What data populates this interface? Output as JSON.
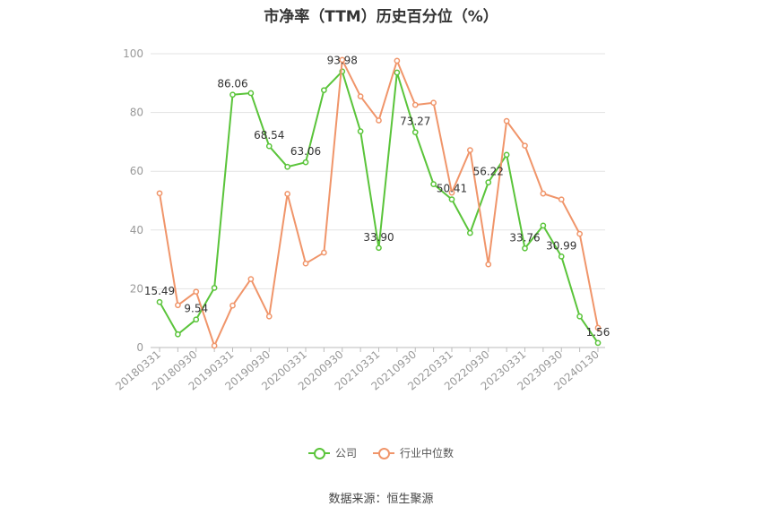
{
  "chart_data": {
    "type": "line",
    "title": "市净率（TTM）历史百分位（%）",
    "ylim": [
      0,
      100
    ],
    "yticks": [
      0,
      20,
      40,
      60,
      80,
      100
    ],
    "grid": true,
    "legend_position": "bottom",
    "x": [
      "20180331",
      "20180630",
      "20180930",
      "20181231",
      "20190331",
      "20190630",
      "20190930",
      "20191231",
      "20200331",
      "20200630",
      "20200930",
      "20201231",
      "20210331",
      "20210630",
      "20210930",
      "20211231",
      "20220331",
      "20220630",
      "20220930",
      "20221231",
      "20230331",
      "20230630",
      "20230930",
      "20231231",
      "20240130"
    ],
    "xtick_labels": [
      "20180331",
      "20180930",
      "20190331",
      "20190930",
      "20200331",
      "20200930",
      "20210331",
      "20210930",
      "20220331",
      "20220930",
      "20230331",
      "20230930",
      "20240130"
    ],
    "series": [
      {
        "name": "公司",
        "color": "#5ac43a",
        "values": [
          15.49,
          4.5,
          9.54,
          20.3,
          86.06,
          86.6,
          68.54,
          61.5,
          63.06,
          87.6,
          93.98,
          73.6,
          33.9,
          93.6,
          73.27,
          55.6,
          50.41,
          39.0,
          56.22,
          65.6,
          33.76,
          41.5,
          30.99,
          10.6,
          1.56
        ]
      },
      {
        "name": "行业中位数",
        "color": "#f0956a",
        "values": [
          52.5,
          14.4,
          19.0,
          0.6,
          14.3,
          23.3,
          10.6,
          52.3,
          28.6,
          32.3,
          97.9,
          85.5,
          77.3,
          97.6,
          82.6,
          83.3,
          52.7,
          67.2,
          28.3,
          77.1,
          68.7,
          52.4,
          50.4,
          38.7,
          6.7
        ]
      }
    ],
    "data_labels": [
      {
        "series": 0,
        "index": 0,
        "text": "15.49"
      },
      {
        "series": 0,
        "index": 2,
        "text": "9.54"
      },
      {
        "series": 0,
        "index": 4,
        "text": "86.06"
      },
      {
        "series": 0,
        "index": 6,
        "text": "68.54"
      },
      {
        "series": 0,
        "index": 8,
        "text": "63.06"
      },
      {
        "series": 0,
        "index": 10,
        "text": "93.98"
      },
      {
        "series": 0,
        "index": 12,
        "text": "33.90"
      },
      {
        "series": 0,
        "index": 14,
        "text": "73.27"
      },
      {
        "series": 0,
        "index": 16,
        "text": "50.41"
      },
      {
        "series": 0,
        "index": 18,
        "text": "56.22"
      },
      {
        "series": 0,
        "index": 20,
        "text": "33.76"
      },
      {
        "series": 0,
        "index": 22,
        "text": "30.99"
      },
      {
        "series": 0,
        "index": 24,
        "text": "1.56"
      }
    ]
  },
  "source_text": "数据来源：恒生聚源"
}
